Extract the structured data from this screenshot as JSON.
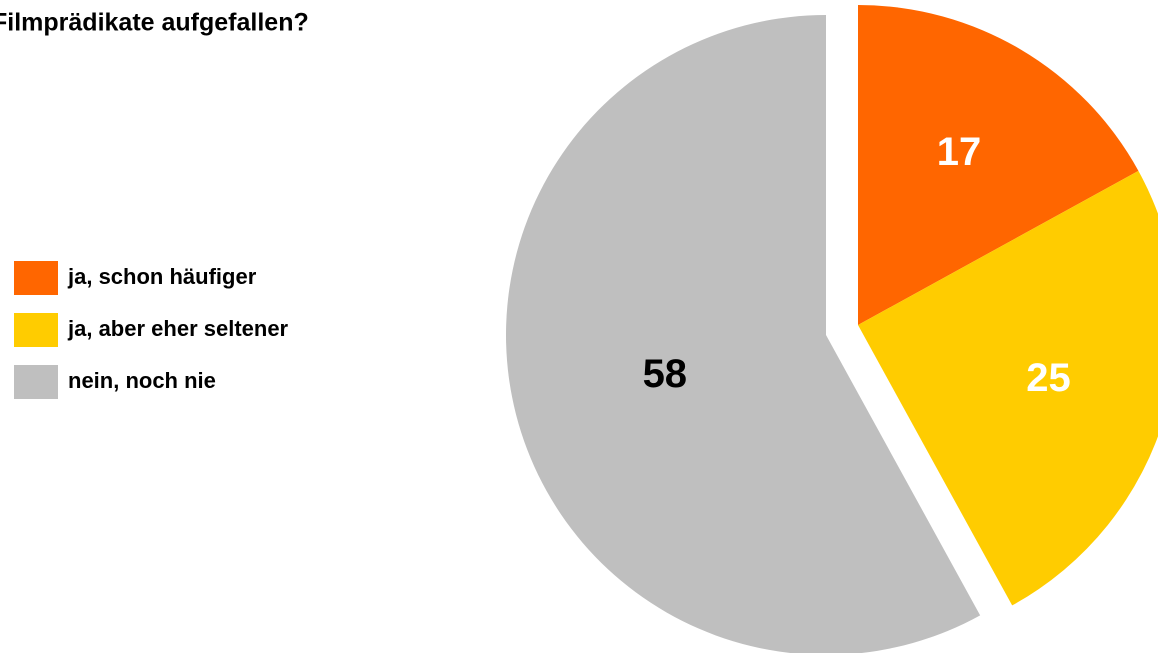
{
  "chart_data": {
    "type": "pie",
    "title": "Filmprädikate aufgefallen?",
    "categories": [
      "ja, schon häufiger",
      "ja, aber eher seltener",
      "nein, noch nie"
    ],
    "values": [
      17,
      25,
      58
    ],
    "colors": [
      "#ff6600",
      "#ffcc00",
      "#bfbfbf"
    ],
    "label_colors": [
      "#ffffff",
      "#ffffff",
      "#000000"
    ],
    "legend": "left"
  }
}
